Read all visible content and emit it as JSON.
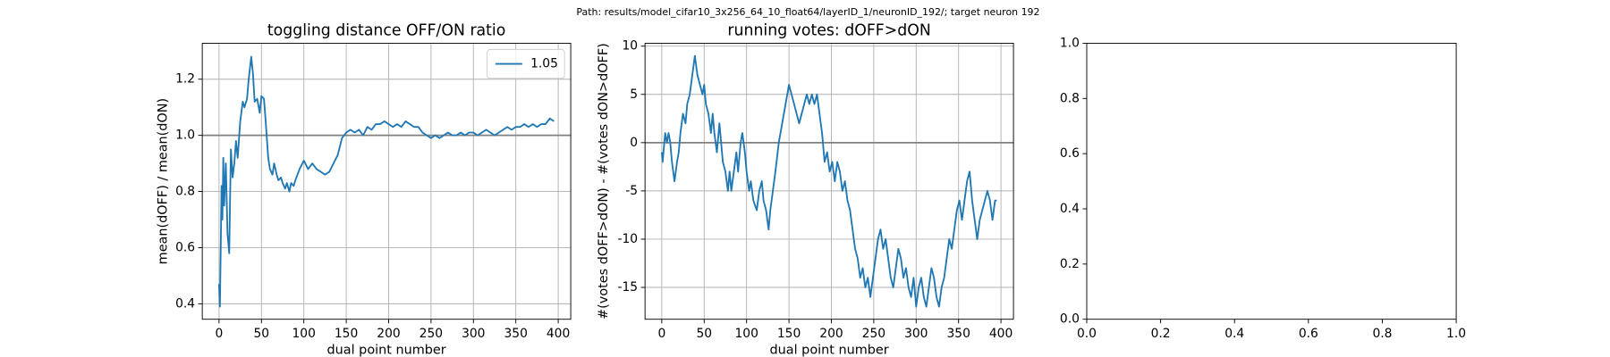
{
  "suptitle": "Path: results/model_cifar10_3x256_64_10_float64/layerID_1/neuronID_192/; target neuron 192",
  "chart_data": [
    {
      "type": "line",
      "title": "toggling distance OFF/ON ratio",
      "xlabel": "dual point number",
      "ylabel": "mean(dOFF) / mean(dON)",
      "x": [
        0,
        1,
        2,
        3,
        4,
        5,
        6,
        8,
        10,
        12,
        14,
        16,
        18,
        20,
        22,
        25,
        28,
        30,
        33,
        35,
        38,
        40,
        42,
        45,
        48,
        50,
        53,
        55,
        58,
        60,
        63,
        65,
        68,
        70,
        73,
        75,
        78,
        80,
        83,
        85,
        88,
        90,
        95,
        100,
        105,
        110,
        115,
        120,
        125,
        130,
        135,
        140,
        145,
        150,
        155,
        160,
        165,
        170,
        175,
        180,
        185,
        190,
        195,
        200,
        205,
        210,
        215,
        220,
        225,
        230,
        235,
        240,
        245,
        250,
        255,
        260,
        265,
        270,
        275,
        280,
        285,
        290,
        295,
        300,
        305,
        310,
        315,
        320,
        325,
        330,
        335,
        340,
        345,
        350,
        355,
        360,
        365,
        370,
        375,
        380,
        385,
        390,
        395
      ],
      "series": [
        {
          "name": "1.05",
          "color": "#1f77b4",
          "values": [
            0.47,
            0.39,
            0.6,
            0.82,
            0.7,
            0.92,
            0.75,
            0.9,
            0.65,
            0.58,
            0.95,
            0.85,
            0.9,
            0.98,
            0.92,
            1.05,
            1.12,
            1.1,
            1.13,
            1.2,
            1.28,
            1.22,
            1.12,
            1.13,
            1.08,
            1.14,
            1.13,
            1.05,
            0.92,
            0.88,
            0.86,
            0.9,
            0.86,
            0.84,
            0.85,
            0.83,
            0.81,
            0.83,
            0.8,
            0.83,
            0.82,
            0.84,
            0.88,
            0.91,
            0.88,
            0.9,
            0.88,
            0.87,
            0.86,
            0.87,
            0.9,
            0.93,
            0.99,
            1.01,
            1.02,
            1.01,
            1.02,
            1.0,
            1.03,
            1.02,
            1.04,
            1.04,
            1.05,
            1.04,
            1.03,
            1.04,
            1.03,
            1.05,
            1.04,
            1.03,
            1.03,
            1.01,
            1.0,
            0.99,
            1.0,
            0.99,
            1.0,
            1.01,
            1.0,
            1.0,
            1.01,
            1.0,
            1.01,
            1.01,
            1.0,
            1.01,
            1.02,
            1.01,
            1.0,
            1.01,
            1.02,
            1.03,
            1.02,
            1.03,
            1.03,
            1.04,
            1.03,
            1.04,
            1.03,
            1.04,
            1.04,
            1.06,
            1.05
          ]
        }
      ],
      "hline": 1.0,
      "hline_color": "#808080",
      "xlim": [
        -19.75,
        414.75
      ],
      "xticks": [
        0,
        50,
        100,
        150,
        200,
        250,
        300,
        350,
        400
      ],
      "ylim": [
        0.345,
        1.328
      ],
      "yticks": [
        0.4,
        0.6,
        0.8,
        {
          "value": 1.0,
          "label": "1.0"
        },
        1.2
      ],
      "grid": true,
      "legend": "upper right"
    },
    {
      "type": "line",
      "title": "running votes: dOFF>dON",
      "xlabel": "dual point number",
      "ylabel": "#(votes dOFF>dON) - #(votes dON>dOFF)",
      "x": [
        0,
        1,
        2,
        4,
        6,
        8,
        10,
        12,
        15,
        18,
        20,
        22,
        25,
        28,
        30,
        33,
        36,
        39,
        42,
        45,
        48,
        50,
        52,
        55,
        58,
        60,
        62,
        65,
        68,
        70,
        72,
        75,
        78,
        80,
        82,
        85,
        88,
        90,
        93,
        95,
        98,
        100,
        103,
        105,
        108,
        112,
        115,
        118,
        120,
        123,
        126,
        128,
        131,
        134,
        138,
        142,
        146,
        150,
        153,
        156,
        159,
        162,
        165,
        168,
        171,
        174,
        177,
        180,
        183,
        186,
        189,
        192,
        195,
        198,
        201,
        204,
        207,
        210,
        213,
        216,
        219,
        222,
        225,
        228,
        231,
        234,
        237,
        240,
        243,
        246,
        249,
        252,
        255,
        258,
        261,
        264,
        267,
        270,
        273,
        276,
        279,
        282,
        285,
        288,
        291,
        294,
        297,
        300,
        303,
        306,
        309,
        312,
        315,
        318,
        321,
        324,
        327,
        330,
        333,
        336,
        339,
        342,
        345,
        348,
        351,
        354,
        357,
        360,
        363,
        366,
        369,
        372,
        375,
        378,
        381,
        384,
        387,
        390,
        393,
        395
      ],
      "series": [
        {
          "color": "#1f77b4",
          "values": [
            -1,
            -2,
            -1,
            1,
            0,
            1,
            0,
            -2,
            -4,
            -2,
            -1,
            1,
            3,
            2,
            4,
            5,
            7,
            9,
            7,
            6,
            5,
            6,
            4,
            3,
            1,
            3,
            1,
            -1,
            2,
            0,
            -2,
            -3,
            -5,
            -3,
            -5,
            -3,
            -1,
            -3,
            0,
            1,
            -1,
            -3,
            -5,
            -4,
            -6,
            -7,
            -5,
            -4,
            -6,
            -7,
            -9,
            -7,
            -5,
            -3,
            0,
            2,
            4,
            6,
            5,
            4,
            3,
            2,
            3,
            4,
            5,
            4,
            5,
            4,
            5,
            3,
            1,
            -2,
            -1,
            -3,
            -2,
            -4,
            -2,
            -3,
            -5,
            -4,
            -6,
            -7,
            -9,
            -11,
            -12,
            -14,
            -13,
            -15,
            -14,
            -16,
            -14,
            -12,
            -10,
            -9,
            -11,
            -10,
            -12,
            -14,
            -15,
            -13,
            -11,
            -12,
            -14,
            -13,
            -15,
            -16,
            -14,
            -17,
            -15,
            -14,
            -16,
            -17,
            -15,
            -13,
            -14,
            -16,
            -17,
            -15,
            -14,
            -12,
            -10,
            -11,
            -9,
            -7,
            -6,
            -8,
            -6,
            -4,
            -3,
            -6,
            -8,
            -10,
            -8,
            -7,
            -6,
            -5,
            -6,
            -8,
            -6,
            -6
          ]
        }
      ],
      "hline": 0,
      "hline_color": "#808080",
      "xlim": [
        -19.75,
        414.75
      ],
      "xticks": [
        0,
        50,
        100,
        150,
        200,
        250,
        300,
        350,
        400
      ],
      "ylim": [
        -18.3,
        10.3
      ],
      "yticks": [
        -15,
        -10,
        -5,
        0,
        5,
        10
      ],
      "grid": true
    },
    {
      "type": "empty",
      "xlim": [
        0,
        1
      ],
      "xticks": [
        {
          "value": 0,
          "label": "0.0"
        },
        0.2,
        0.4,
        0.6,
        0.8,
        {
          "value": 1,
          "label": "1.0"
        }
      ],
      "ylim": [
        0,
        1
      ],
      "yticks": [
        {
          "value": 0,
          "label": "0.0"
        },
        0.2,
        0.4,
        0.6,
        0.8,
        {
          "value": 1,
          "label": "1.0"
        }
      ],
      "grid": false
    }
  ]
}
